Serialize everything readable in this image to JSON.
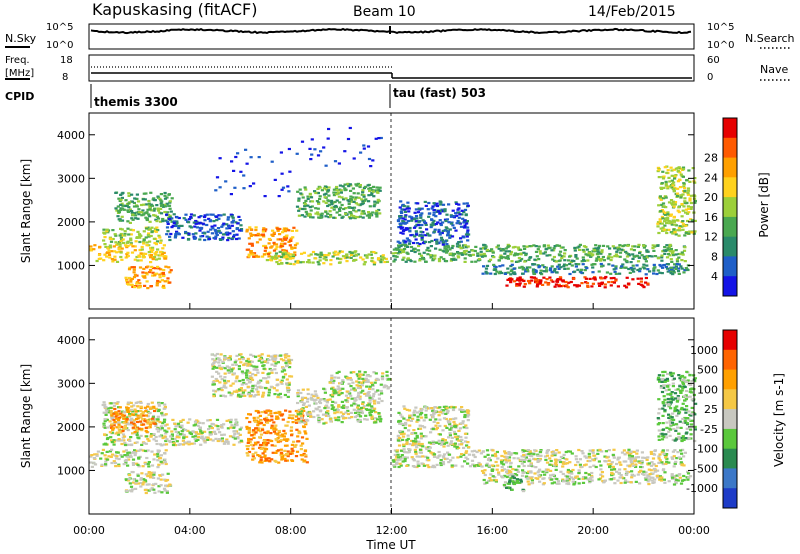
{
  "header": {
    "station": "Kapuskasing (fitACF)",
    "beam": "Beam 10",
    "date": "14/Feb/2015"
  },
  "noise_panel": {
    "left_label": "N.Sky",
    "right_label": "N.Search",
    "left_ticks": [
      "10^5",
      "10^0"
    ],
    "right_ticks": [
      "10^5",
      "10^0"
    ]
  },
  "freq_panel": {
    "left_label": "Freq.",
    "left_unit": "[MHz]",
    "right_label": "Nave",
    "left_ticks": [
      "18",
      "8"
    ],
    "right_ticks": [
      "60",
      "0"
    ]
  },
  "cpid": {
    "label": "CPID",
    "modes": [
      {
        "name": "themis 3300",
        "start_hour": 0,
        "end_hour": 12
      },
      {
        "name": "tau (fast) 503",
        "start_hour": 12,
        "end_hour": 24
      }
    ]
  },
  "chart_data": [
    {
      "type": "heatmap",
      "title": "Power",
      "xlabel": "Time UT",
      "ylabel": "Slant Range [km]",
      "xlim": [
        0,
        24
      ],
      "ylim": [
        0,
        4500
      ],
      "x_ticks": [
        "00:00",
        "04:00",
        "08:00",
        "12:00",
        "16:00",
        "20:00",
        "00:00"
      ],
      "y_ticks": [
        "1000",
        "2000",
        "3000",
        "4000"
      ],
      "colorbar": {
        "label": "Power [dB]",
        "ticks": [
          "4",
          "8",
          "12",
          "16",
          "20",
          "24",
          "28"
        ],
        "colors": [
          "#1414e6",
          "#1f5fc8",
          "#2a8a6a",
          "#4aa850",
          "#9ccf3a",
          "#ffd21e",
          "#ffa000",
          "#ff5a00",
          "#e60000"
        ]
      },
      "blobs": [
        {
          "t0": 0.0,
          "t1": 3.0,
          "r0": 1100,
          "r1": 1500,
          "level": 5
        },
        {
          "t0": 0.5,
          "t1": 2.8,
          "r0": 1500,
          "r1": 1900,
          "level": 4
        },
        {
          "t0": 1.0,
          "t1": 3.3,
          "r0": 2000,
          "r1": 2700,
          "level": 3
        },
        {
          "t0": 1.4,
          "t1": 3.2,
          "r0": 500,
          "r1": 1000,
          "level": 6
        },
        {
          "t0": 3.0,
          "t1": 6.0,
          "r0": 1600,
          "r1": 2200,
          "level": 1
        },
        {
          "t0": 6.2,
          "t1": 8.2,
          "r0": 1200,
          "r1": 1900,
          "level": 6
        },
        {
          "t0": 8.2,
          "t1": 11.5,
          "r0": 2100,
          "r1": 2900,
          "level": 3
        },
        {
          "t0": 7.0,
          "t1": 11.8,
          "r0": 1050,
          "r1": 1350,
          "level": 4
        },
        {
          "t0": 12.0,
          "t1": 23.6,
          "r0": 1100,
          "r1": 1500,
          "level": 3
        },
        {
          "t0": 12.2,
          "t1": 15.0,
          "r0": 1500,
          "r1": 2500,
          "level": 1
        },
        {
          "t0": 15.5,
          "t1": 23.8,
          "r0": 820,
          "r1": 1060,
          "level": 2
        },
        {
          "t0": 16.5,
          "t1": 22.2,
          "r0": 520,
          "r1": 760,
          "level": 8
        },
        {
          "t0": 22.5,
          "t1": 24.0,
          "r0": 1700,
          "r1": 3300,
          "level": 4
        },
        {
          "t0": 4.8,
          "t1": 8.0,
          "r0": 2600,
          "r1": 3700,
          "level": 0
        },
        {
          "t0": 8.0,
          "t1": 11.6,
          "r0": 3300,
          "r1": 4200,
          "level": 0
        }
      ]
    },
    {
      "type": "heatmap",
      "title": "Velocity",
      "xlabel": "Time UT",
      "ylabel": "Slant Range [km]",
      "xlim": [
        0,
        24
      ],
      "ylim": [
        0,
        4500
      ],
      "x_ticks": [
        "00:00",
        "04:00",
        "08:00",
        "12:00",
        "16:00",
        "20:00",
        "00:00"
      ],
      "y_ticks": [
        "1000",
        "2000",
        "3000",
        "4000"
      ],
      "colorbar": {
        "label": "Velocity [m s-1]",
        "ticks": [
          "1000",
          "500",
          "100",
          "25",
          "-25",
          "-100",
          "-500",
          "-1000"
        ],
        "colors": [
          "#1e3cc8",
          "#3c78c8",
          "#2a8a50",
          "#5ac83c",
          "#c8c8c0",
          "#f5c846",
          "#ffa000",
          "#ff6400",
          "#e60000"
        ]
      },
      "blobs": [
        {
          "t0": 0.0,
          "t1": 3.0,
          "r0": 1100,
          "r1": 1500,
          "level": 4
        },
        {
          "t0": 0.5,
          "t1": 3.0,
          "r0": 1600,
          "r1": 2600,
          "level": 4
        },
        {
          "t0": 0.8,
          "t1": 2.6,
          "r0": 1900,
          "r1": 2500,
          "level": 6
        },
        {
          "t0": 1.4,
          "t1": 3.2,
          "r0": 500,
          "r1": 1000,
          "level": 4
        },
        {
          "t0": 3.0,
          "t1": 6.0,
          "r0": 1600,
          "r1": 2200,
          "level": 4
        },
        {
          "t0": 6.2,
          "t1": 8.6,
          "r0": 1200,
          "r1": 2400,
          "level": 6
        },
        {
          "t0": 8.2,
          "t1": 11.6,
          "r0": 2100,
          "r1": 2900,
          "level": 4
        },
        {
          "t0": 9.5,
          "t1": 11.9,
          "r0": 2900,
          "r1": 3300,
          "level": 4
        },
        {
          "t0": 12.0,
          "t1": 23.6,
          "r0": 1100,
          "r1": 1500,
          "level": 4
        },
        {
          "t0": 12.2,
          "t1": 15.0,
          "r0": 1500,
          "r1": 2500,
          "level": 4
        },
        {
          "t0": 15.5,
          "t1": 23.8,
          "r0": 700,
          "r1": 1060,
          "level": 4
        },
        {
          "t0": 16.4,
          "t1": 17.2,
          "r0": 550,
          "r1": 900,
          "level": 3
        },
        {
          "t0": 22.5,
          "t1": 24.0,
          "r0": 1700,
          "r1": 3300,
          "level": 3
        },
        {
          "t0": 4.8,
          "t1": 8.0,
          "r0": 2700,
          "r1": 3700,
          "level": 4
        }
      ]
    }
  ]
}
